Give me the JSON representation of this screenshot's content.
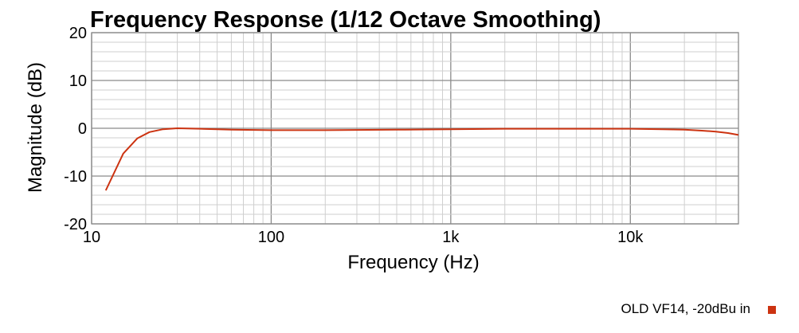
{
  "chart_data": {
    "type": "line",
    "title": "Frequency Response (1/12 Octave Smoothing)",
    "xlabel": "Frequency (Hz)",
    "ylabel": "Magnitude (dB)",
    "xscale": "log",
    "xlim": [
      10,
      40000
    ],
    "ylim": [
      -20,
      20
    ],
    "xticks": [
      {
        "value": 10,
        "label": "10"
      },
      {
        "value": 100,
        "label": "100"
      },
      {
        "value": 1000,
        "label": "1k"
      },
      {
        "value": 10000,
        "label": "10k"
      }
    ],
    "yticks": [
      {
        "value": 20,
        "label": "20"
      },
      {
        "value": 10,
        "label": "10"
      },
      {
        "value": 0,
        "label": "0"
      },
      {
        "value": -10,
        "label": "-10"
      },
      {
        "value": -20,
        "label": "-20"
      }
    ],
    "grid": true,
    "legend_position": "bottom-right",
    "series": [
      {
        "name": "OLD VF14, -20dBu in",
        "color": "#cc3311",
        "x": [
          12,
          15,
          18,
          21,
          25,
          30,
          40,
          60,
          100,
          200,
          500,
          1000,
          2000,
          5000,
          10000,
          15000,
          20000,
          25000,
          30000,
          35000,
          40000
        ],
        "y": [
          -13,
          -5.3,
          -2.1,
          -0.8,
          -0.2,
          0,
          -0.1,
          -0.3,
          -0.4,
          -0.4,
          -0.3,
          -0.2,
          -0.1,
          -0.1,
          -0.1,
          -0.2,
          -0.3,
          -0.5,
          -0.7,
          -1.0,
          -1.4
        ]
      }
    ]
  }
}
